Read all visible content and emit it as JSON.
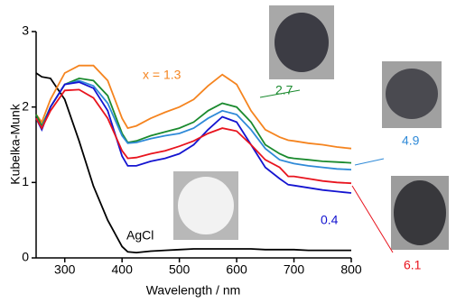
{
  "chart_data": {
    "type": "line",
    "x_label": "Wavelength / nm",
    "y_label": "Kubelka-Munk",
    "x": [
      250,
      260,
      275,
      300,
      325,
      350,
      375,
      400,
      410,
      425,
      450,
      475,
      500,
      525,
      550,
      575,
      600,
      625,
      650,
      675,
      690,
      700,
      725,
      750,
      775,
      800
    ],
    "series": [
      {
        "name": "AgCl",
        "color": "#000000",
        "values": [
          2.45,
          2.4,
          2.38,
          2.1,
          1.55,
          0.95,
          0.5,
          0.15,
          0.08,
          0.07,
          0.09,
          0.1,
          0.11,
          0.12,
          0.12,
          0.12,
          0.12,
          0.12,
          0.11,
          0.11,
          0.11,
          0.11,
          0.1,
          0.1,
          0.1,
          0.1
        ]
      },
      {
        "name": "x = 1.3",
        "color": "#f5841f",
        "values": [
          1.9,
          1.8,
          2.1,
          2.45,
          2.55,
          2.55,
          2.35,
          1.85,
          1.72,
          1.75,
          1.85,
          1.93,
          2.0,
          2.1,
          2.28,
          2.43,
          2.3,
          1.95,
          1.7,
          1.6,
          1.56,
          1.55,
          1.52,
          1.5,
          1.47,
          1.45
        ]
      },
      {
        "name": "2.7",
        "color": "#1a8a2e",
        "values": [
          1.9,
          1.75,
          2.0,
          2.3,
          2.38,
          2.35,
          2.15,
          1.65,
          1.53,
          1.55,
          1.62,
          1.67,
          1.72,
          1.8,
          1.95,
          2.05,
          2.0,
          1.8,
          1.5,
          1.38,
          1.33,
          1.32,
          1.3,
          1.28,
          1.27,
          1.26
        ]
      },
      {
        "name": "4.9",
        "color": "#2f8ad8",
        "values": [
          1.85,
          1.72,
          2.0,
          2.3,
          2.35,
          2.28,
          2.05,
          1.62,
          1.52,
          1.53,
          1.58,
          1.62,
          1.65,
          1.72,
          1.85,
          1.95,
          1.9,
          1.7,
          1.45,
          1.3,
          1.27,
          1.25,
          1.22,
          1.2,
          1.18,
          1.17
        ]
      },
      {
        "name": "0.4",
        "color": "#1414d0",
        "values": [
          1.85,
          1.7,
          2.0,
          2.3,
          2.33,
          2.25,
          1.95,
          1.35,
          1.22,
          1.22,
          1.28,
          1.32,
          1.38,
          1.5,
          1.7,
          1.87,
          1.8,
          1.5,
          1.2,
          1.05,
          0.97,
          0.96,
          0.93,
          0.9,
          0.88,
          0.86
        ]
      },
      {
        "name": "6.1",
        "color": "#e8141e",
        "values": [
          1.85,
          1.72,
          1.95,
          2.22,
          2.23,
          2.12,
          1.85,
          1.42,
          1.32,
          1.33,
          1.38,
          1.42,
          1.48,
          1.55,
          1.65,
          1.72,
          1.68,
          1.5,
          1.3,
          1.2,
          1.08,
          1.08,
          1.05,
          1.02,
          1.0,
          0.99
        ]
      }
    ],
    "xlim": [
      250,
      800
    ],
    "xticks": [
      300,
      400,
      500,
      600,
      700,
      800
    ],
    "ylim": [
      0,
      3
    ],
    "yticks": [
      0,
      1,
      2,
      3
    ],
    "grid": false
  }
}
